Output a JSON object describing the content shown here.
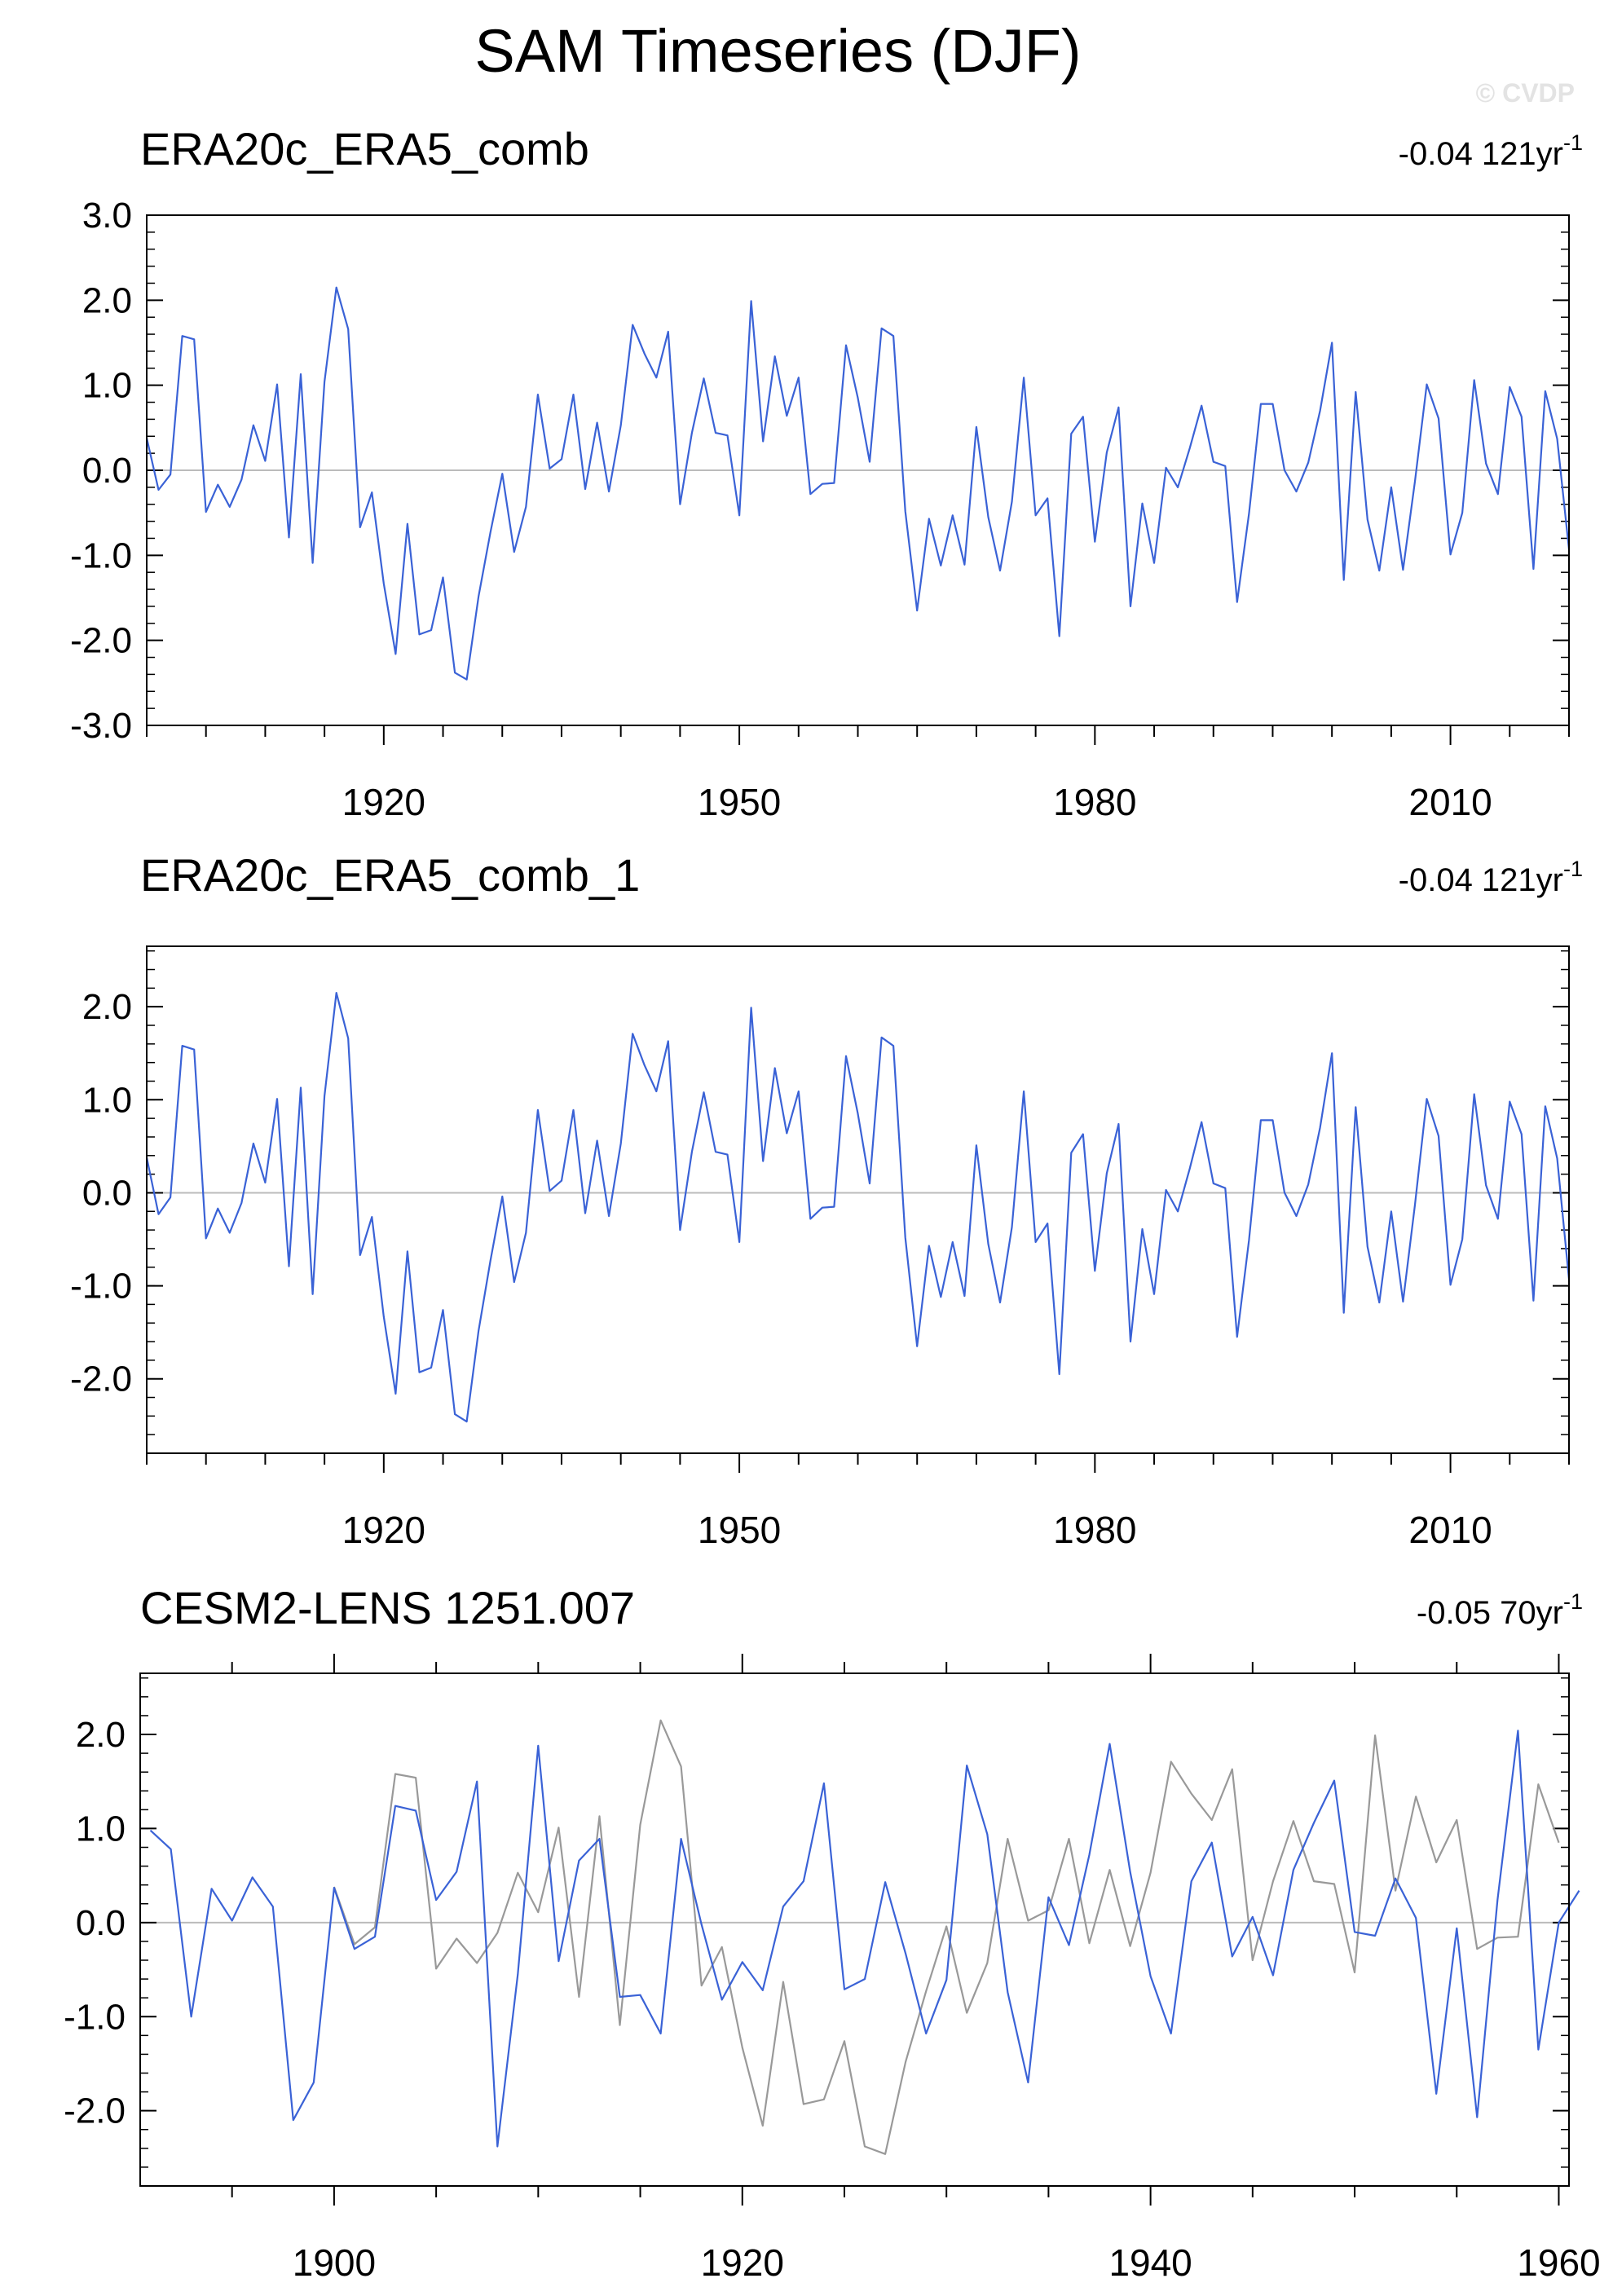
{
  "title": "SAM Timeseries (DJF)",
  "watermark": "© CVDP",
  "colors": {
    "model_line": "#3a62d6",
    "obs_line": "#999999",
    "zero_line": "#bbbbbb",
    "axis": "#000000"
  },
  "chart_data": [
    {
      "type": "line",
      "title": "ERA20c_ERA5_comb",
      "trend_label": "-0.04 121yr",
      "trend_exp": "-1",
      "xlim": [
        1900,
        2020
      ],
      "ylim": [
        -3,
        3
      ],
      "yticks": [
        "3.0",
        "2.0",
        "1.0",
        "0.0",
        "-1.0",
        "-2.0",
        "-3.0"
      ],
      "xticks": [
        "1920",
        "1950",
        "1980",
        "2010"
      ],
      "grid": false,
      "series": [
        {
          "start": 1900,
          "values": [
            0.38,
            -0.23,
            -0.05,
            1.58,
            1.54,
            -0.49,
            -0.17,
            -0.43,
            -0.11,
            0.53,
            0.11,
            1.01,
            -0.79,
            1.13,
            -1.09,
            1.04,
            2.15,
            1.66,
            -0.67,
            -0.26,
            -1.33,
            -2.16,
            -0.63,
            -1.93,
            -1.88,
            -1.26,
            -2.38,
            -2.46,
            -1.48,
            -0.73,
            -0.04,
            -0.96,
            -0.43,
            0.89,
            0.02,
            0.13,
            0.89,
            -0.22,
            0.56,
            -0.25,
            0.53,
            1.71,
            1.37,
            1.09,
            1.63,
            -0.4,
            0.44,
            1.08,
            0.44,
            0.41,
            -0.53,
            1.99,
            0.34,
            1.34,
            0.64,
            1.09,
            -0.28,
            -0.16,
            -0.15,
            1.47,
            0.85,
            0.1,
            1.67,
            1.58,
            -0.48,
            -1.65,
            -0.57,
            -1.12,
            -0.53,
            -1.11,
            0.51,
            -0.55,
            -1.18,
            -0.37,
            1.09,
            -0.53,
            -0.33,
            -1.95,
            0.43,
            0.63,
            -0.84,
            0.21,
            0.74,
            -1.6,
            -0.39,
            -1.09,
            0.03,
            -0.2,
            0.26,
            0.76,
            0.1,
            0.05,
            -1.55,
            -0.51,
            0.78,
            0.78,
            0.0,
            -0.25,
            0.09,
            0.7,
            1.5,
            -1.29,
            0.92,
            -0.58,
            -1.18,
            -0.2,
            -1.17,
            -0.13,
            1.01,
            0.61,
            -0.99,
            -0.5,
            1.06,
            0.08,
            -0.28,
            0.98,
            0.63,
            -1.16,
            0.93,
            0.37,
            -0.93
          ]
        }
      ]
    },
    {
      "type": "line",
      "title": "ERA20c_ERA5_comb_1",
      "trend_label": "-0.04 121yr",
      "trend_exp": "-1",
      "xlim": [
        1900,
        2020
      ],
      "ylim": [
        -2.8,
        2.65
      ],
      "yticks": [
        "2.0",
        "1.0",
        "0.0",
        "-1.0",
        "-2.0"
      ],
      "xticks": [
        "1920",
        "1950",
        "1980",
        "2010"
      ],
      "grid": false,
      "series": [
        {
          "start": 1900,
          "values": [
            0.38,
            -0.23,
            -0.05,
            1.58,
            1.54,
            -0.49,
            -0.17,
            -0.43,
            -0.11,
            0.53,
            0.11,
            1.01,
            -0.79,
            1.13,
            -1.09,
            1.04,
            2.15,
            1.66,
            -0.67,
            -0.26,
            -1.33,
            -2.16,
            -0.63,
            -1.93,
            -1.88,
            -1.26,
            -2.38,
            -2.46,
            -1.48,
            -0.73,
            -0.04,
            -0.96,
            -0.43,
            0.89,
            0.02,
            0.13,
            0.89,
            -0.22,
            0.56,
            -0.25,
            0.53,
            1.71,
            1.37,
            1.09,
            1.63,
            -0.4,
            0.44,
            1.08,
            0.44,
            0.41,
            -0.53,
            1.99,
            0.34,
            1.34,
            0.64,
            1.09,
            -0.28,
            -0.16,
            -0.15,
            1.47,
            0.85,
            0.1,
            1.67,
            1.58,
            -0.48,
            -1.65,
            -0.57,
            -1.12,
            -0.53,
            -1.11,
            0.51,
            -0.55,
            -1.18,
            -0.37,
            1.09,
            -0.53,
            -0.33,
            -1.95,
            0.43,
            0.63,
            -0.84,
            0.21,
            0.74,
            -1.6,
            -0.39,
            -1.09,
            0.03,
            -0.2,
            0.26,
            0.76,
            0.1,
            0.05,
            -1.55,
            -0.51,
            0.78,
            0.78,
            0.0,
            -0.25,
            0.09,
            0.7,
            1.5,
            -1.29,
            0.92,
            -0.58,
            -1.18,
            -0.2,
            -1.17,
            -0.13,
            1.01,
            0.61,
            -0.99,
            -0.5,
            1.06,
            0.08,
            -0.28,
            0.98,
            0.63,
            -1.16,
            0.93,
            0.37,
            -0.93
          ]
        }
      ]
    },
    {
      "type": "line",
      "title": "CESM2-LENS 1251.007",
      "trend_label": "-0.05 70yr",
      "trend_exp": "-1",
      "xlim": [
        1890.5,
        1960.5
      ],
      "ylim": [
        -2.8,
        2.65
      ],
      "yticks": [
        "2.0",
        "1.0",
        "0.0",
        "-1.0",
        "-2.0"
      ],
      "xticks": [
        "1900",
        "1920",
        "1940",
        "1960"
      ],
      "grid": false,
      "series": [
        {
          "start": 1900,
          "color_key": "obs_line",
          "values": [
            0.38,
            -0.23,
            -0.05,
            1.58,
            1.54,
            -0.49,
            -0.17,
            -0.43,
            -0.11,
            0.53,
            0.11,
            1.01,
            -0.79,
            1.13,
            -1.09,
            1.04,
            2.15,
            1.66,
            -0.67,
            -0.26,
            -1.33,
            -2.16,
            -0.63,
            -1.93,
            -1.88,
            -1.26,
            -2.38,
            -2.46,
            -1.48,
            -0.73,
            -0.04,
            -0.96,
            -0.43,
            0.89,
            0.02,
            0.13,
            0.89,
            -0.22,
            0.56,
            -0.25,
            0.53,
            1.71,
            1.37,
            1.09,
            1.63,
            -0.4,
            0.44,
            1.08,
            0.44,
            0.41,
            -0.53,
            1.99,
            0.34,
            1.34,
            0.64,
            1.09,
            -0.28,
            -0.16,
            -0.15,
            1.47,
            0.85
          ]
        },
        {
          "start": 1891,
          "color_key": "model_line",
          "values": [
            0.98,
            0.78,
            -1.0,
            0.36,
            0.02,
            0.48,
            0.17,
            -2.1,
            -1.7,
            0.37,
            -0.28,
            -0.15,
            1.24,
            1.19,
            0.24,
            0.54,
            1.5,
            -2.38,
            -0.55,
            1.88,
            -0.41,
            0.66,
            0.89,
            -0.79,
            -0.77,
            -1.18,
            0.89,
            -0.02,
            -0.82,
            -0.42,
            -0.72,
            0.17,
            0.44,
            1.48,
            -0.71,
            -0.6,
            0.43,
            -0.33,
            -1.18,
            -0.61,
            1.67,
            0.94,
            -0.74,
            -1.7,
            0.27,
            -0.24,
            0.72,
            1.9,
            0.54,
            -0.57,
            -1.18,
            0.44,
            0.85,
            -0.36,
            0.06,
            -0.56,
            0.56,
            1.06,
            1.51,
            -0.1,
            -0.14,
            0.47,
            0.05,
            -1.82,
            -0.06,
            -2.07,
            0.24,
            2.04,
            -1.35,
            0.0,
            0.34
          ]
        }
      ]
    }
  ]
}
